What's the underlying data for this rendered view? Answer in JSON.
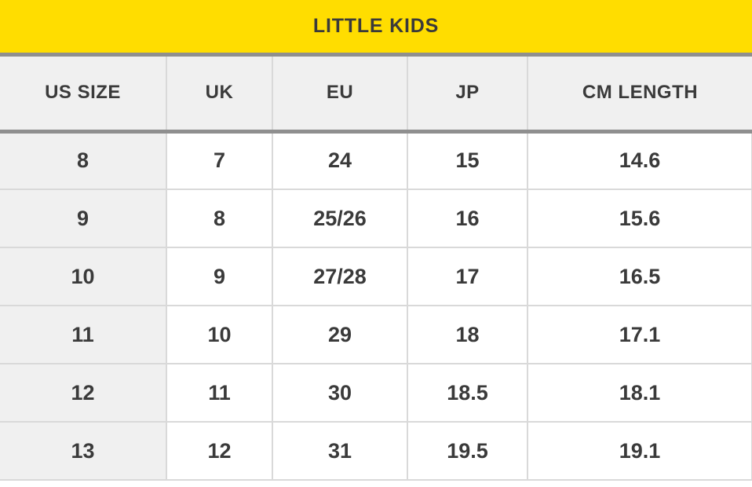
{
  "chart_data": {
    "type": "table",
    "title": "LITTLE KIDS",
    "columns": [
      "US SIZE",
      "UK",
      "EU",
      "JP",
      "CM LENGTH"
    ],
    "rows": [
      [
        "8",
        "7",
        "24",
        "15",
        "14.6"
      ],
      [
        "9",
        "8",
        "25/26",
        "16",
        "15.6"
      ],
      [
        "10",
        "9",
        "27/28",
        "17",
        "16.5"
      ],
      [
        "11",
        "10",
        "29",
        "18",
        "17.1"
      ],
      [
        "12",
        "11",
        "30",
        "18.5",
        "18.1"
      ],
      [
        "13",
        "12",
        "31",
        "19.5",
        "19.1"
      ]
    ],
    "layout_hints": {
      "title_position": "top-banner",
      "grid": "on",
      "shaded_first_column": true
    }
  },
  "colors": {
    "accent_yellow": "#FFDD00",
    "divider_gray": "#8F8F8F",
    "header_bg": "#F0F0F0",
    "row_label_bg": "#F0F0F0",
    "cell_border": "#D9D9D9",
    "text_dark": "#3A3A3A",
    "page_bg": "#FFFFFF"
  }
}
